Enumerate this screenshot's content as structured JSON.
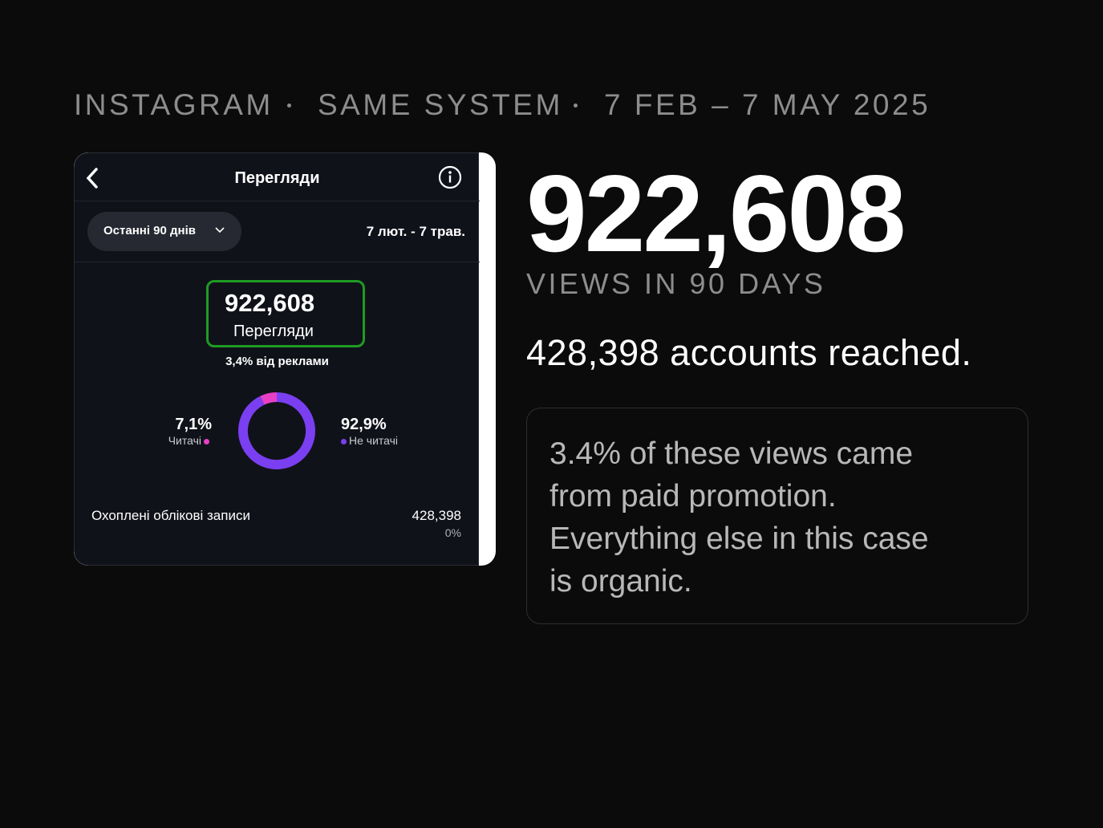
{
  "header": {
    "items": [
      "INSTAGRAM",
      "SAME SYSTEM",
      "7 FEB – 7 MAY 2025"
    ]
  },
  "phone": {
    "title": "Перегляди",
    "range_button": "Останні 90 днів",
    "date_range": "7 лют. - 7 трав.",
    "views": {
      "value": "922,608",
      "label": "Перегляди"
    },
    "ads_share": "3,4% від реклами",
    "donut": {
      "segments": [
        {
          "name": "Читачі",
          "value": 7.1,
          "label": "7,1%",
          "color": "#e83fc7"
        },
        {
          "name": "Не читачі",
          "value": 92.9,
          "label": "92,9%",
          "color": "#7a3ff0"
        }
      ]
    },
    "reached": {
      "label": "Охоплені облікові записи",
      "value": "428,398",
      "change": "0%"
    }
  },
  "summary": {
    "views": "922,608",
    "views_caption": "VIEWS IN 90 DAYS",
    "reached": "428,398 accounts reached.",
    "note_lines": [
      "3.4% of these views came",
      "from paid promotion.",
      "Everything else in this case",
      "is organic."
    ]
  }
}
